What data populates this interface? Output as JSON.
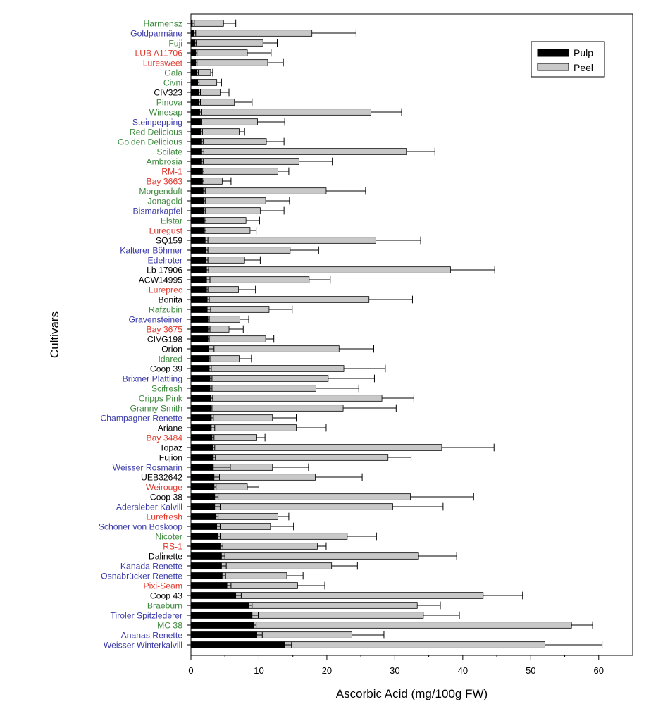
{
  "chart_data": {
    "type": "bar",
    "orientation": "horizontal",
    "title": "",
    "xlabel": "Ascorbic Acid (mg/100g FW)",
    "ylabel": "Cultivars",
    "xlim": [
      0,
      65
    ],
    "xticks": [
      "0",
      "10",
      "20",
      "30",
      "40",
      "50",
      "60"
    ],
    "grid": false,
    "legend": {
      "position": "top-right",
      "entries": [
        "Pulp",
        "Peel"
      ]
    },
    "group_colors": {
      "green": "#3f8a3f",
      "blue": "#3a3aa8",
      "red": "#e03a2f",
      "black": "#000000"
    },
    "bar_colors": {
      "pulp": "#000000",
      "peel": "#c8c8c8"
    },
    "categories": [
      "Harmensz",
      "Goldparmäne",
      "Fuji",
      "LUB A11706",
      "Luresweet",
      "Gala",
      "Civni",
      "CIV323",
      "Pinova",
      "Winesap",
      "Steinpepping",
      "Red Delicious",
      "Golden Delicious",
      "Scilate",
      "Ambrosia",
      "RM-1",
      "Bay 3663",
      "Morgenduft",
      "Jonagold",
      "Bismarkapfel",
      "Elstar",
      "Luregust",
      "SQ159",
      "Kalterer Böhmer",
      "Edelroter",
      "Lb 17906",
      "ACW14995",
      "Lureprec",
      "Bonita",
      "Rafzubin",
      "Gravensteiner",
      "Bay 3675",
      "CIVG198",
      "Orion",
      "Idared",
      "Coop 39",
      "Brixner Plattling",
      "Scifresh",
      "Cripps Pink",
      "Granny Smith",
      "Champagner Renette",
      "Ariane",
      "Bay 3484",
      "Topaz",
      "Fujion",
      "Weisser Rosmarin",
      "UEB32642",
      "Weirouge",
      "Coop 38",
      "Adersleber Kalvill",
      "Lurefresh",
      "Schöner von Boskoop",
      "Nicoter",
      "RS-1",
      "Dalinette",
      "Kanada Renette",
      "Osnabrücker Renette",
      "Pixi-Seam",
      "Coop 43",
      "Braeburn",
      "Tiroler Spitzlederer",
      "MC 38",
      "Ananas Renette",
      "Weisser Winterkalvill"
    ],
    "label_groups": [
      "green",
      "blue",
      "green",
      "red",
      "red",
      "green",
      "green",
      "black",
      "green",
      "green",
      "blue",
      "green",
      "green",
      "green",
      "green",
      "red",
      "red",
      "green",
      "green",
      "blue",
      "green",
      "red",
      "black",
      "blue",
      "blue",
      "black",
      "black",
      "red",
      "black",
      "green",
      "blue",
      "red",
      "black",
      "black",
      "green",
      "black",
      "blue",
      "green",
      "green",
      "green",
      "blue",
      "black",
      "red",
      "black",
      "black",
      "blue",
      "black",
      "red",
      "black",
      "blue",
      "red",
      "blue",
      "green",
      "red",
      "black",
      "blue",
      "blue",
      "red",
      "black",
      "green",
      "blue",
      "green",
      "blue",
      "blue"
    ],
    "series": [
      {
        "name": "Pulp",
        "values": [
          0.2,
          0.4,
          0.6,
          0.7,
          0.7,
          0.9,
          1.0,
          1.1,
          1.2,
          1.3,
          1.4,
          1.5,
          1.6,
          1.6,
          1.6,
          1.7,
          1.7,
          1.8,
          1.9,
          1.9,
          2.0,
          2.0,
          2.1,
          2.2,
          2.2,
          2.3,
          2.3,
          2.3,
          2.4,
          2.4,
          2.5,
          2.5,
          2.5,
          2.6,
          2.6,
          2.7,
          2.8,
          2.8,
          2.9,
          2.9,
          3.0,
          3.0,
          3.1,
          3.2,
          3.3,
          3.3,
          3.4,
          3.4,
          3.5,
          3.5,
          3.7,
          3.8,
          4.0,
          4.3,
          4.5,
          4.5,
          4.6,
          5.3,
          6.6,
          8.5,
          9.0,
          9.2,
          9.7,
          13.8
        ],
        "errors": [
          0.3,
          0.3,
          0.2,
          0.2,
          0.2,
          0.2,
          0.2,
          0.3,
          0.2,
          0.3,
          0.2,
          0.2,
          0.2,
          0.3,
          0.2,
          0.2,
          0.2,
          0.3,
          0.2,
          0.2,
          0.2,
          0.2,
          0.4,
          0.3,
          0.3,
          0.3,
          0.5,
          0.2,
          0.3,
          0.5,
          0.2,
          0.3,
          0.2,
          0.8,
          0.2,
          0.3,
          0.3,
          0.3,
          0.3,
          0.2,
          0.3,
          0.5,
          0.3,
          0.3,
          0.3,
          2.5,
          0.8,
          0.3,
          0.5,
          0.8,
          0.3,
          0.5,
          0.3,
          0.4,
          0.5,
          0.7,
          0.5,
          0.6,
          0.8,
          0.5,
          0.9,
          0.4,
          0.8,
          1.0
        ]
      },
      {
        "name": "Peel",
        "values": [
          4.8,
          17.8,
          10.6,
          8.3,
          11.3,
          2.9,
          3.8,
          4.3,
          6.4,
          26.5,
          9.8,
          7.1,
          11.1,
          31.7,
          15.9,
          12.8,
          4.6,
          19.9,
          11.0,
          10.2,
          8.1,
          8.7,
          27.2,
          14.6,
          7.9,
          38.2,
          17.4,
          7.0,
          26.2,
          11.5,
          7.2,
          5.6,
          11.0,
          21.8,
          7.1,
          22.5,
          20.2,
          18.4,
          28.1,
          22.4,
          12.0,
          15.5,
          9.7,
          36.9,
          29.0,
          12.0,
          18.3,
          8.3,
          32.3,
          29.7,
          12.8,
          11.7,
          23.0,
          18.6,
          33.5,
          20.7,
          14.1,
          15.7,
          43.0,
          33.3,
          34.2,
          56.0,
          23.7,
          52.1
        ],
        "errors": [
          1.8,
          6.5,
          2.1,
          3.5,
          2.3,
          0.3,
          0.7,
          1.3,
          2.6,
          4.5,
          4.0,
          0.8,
          2.6,
          4.2,
          4.9,
          1.6,
          1.3,
          5.8,
          3.5,
          3.5,
          2.0,
          0.9,
          6.6,
          4.2,
          2.3,
          6.5,
          3.1,
          2.5,
          6.4,
          3.4,
          1.3,
          2.1,
          1.2,
          5.1,
          1.8,
          6.1,
          6.8,
          6.3,
          4.7,
          7.8,
          3.5,
          4.4,
          1.2,
          7.7,
          3.4,
          5.3,
          6.9,
          1.7,
          9.3,
          7.4,
          1.6,
          3.4,
          4.3,
          1.3,
          5.6,
          3.8,
          2.4,
          4.0,
          5.8,
          3.4,
          5.3,
          3.1,
          4.7,
          8.4
        ]
      }
    ]
  }
}
